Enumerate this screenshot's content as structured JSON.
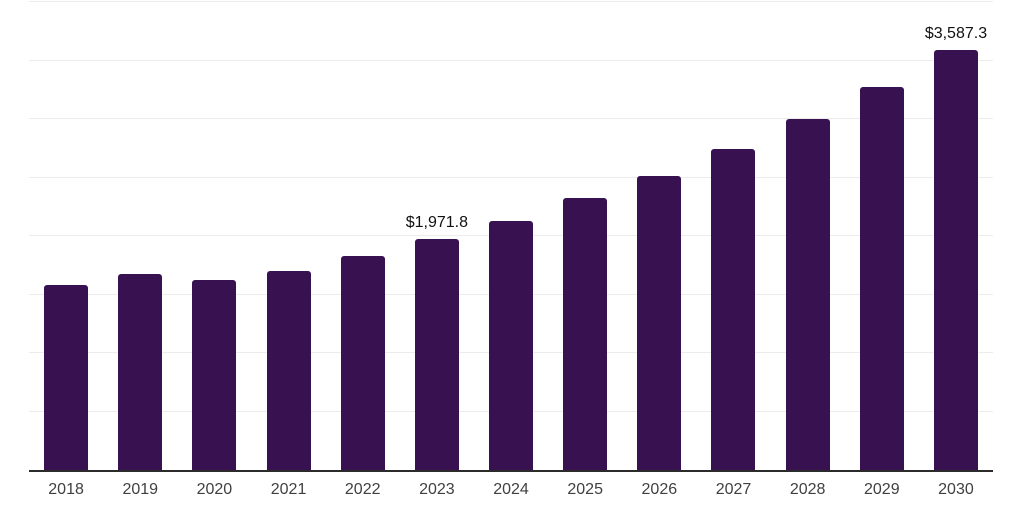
{
  "chart_data": {
    "type": "bar",
    "title": "",
    "categories": [
      "2018",
      "2019",
      "2020",
      "2021",
      "2022",
      "2023",
      "2024",
      "2025",
      "2026",
      "2027",
      "2028",
      "2029",
      "2030"
    ],
    "values": [
      1585,
      1675,
      1625,
      1700,
      1830,
      1971.8,
      2130,
      2325,
      2515,
      2745,
      3000,
      3275,
      3587.3
    ],
    "data_labels": [
      {
        "category": "2023",
        "text": "$1,971.8"
      },
      {
        "category": "2030",
        "text": "$3,587.3"
      }
    ],
    "xlabel": "",
    "ylabel": "",
    "ylim": [
      0,
      4000
    ],
    "gridline_step": 500,
    "grid": "horizontal",
    "legend": "none",
    "y_tick_labels_visible": false,
    "colors": {
      "bar": "#371150",
      "gridline": "#ececec",
      "axis_line": "#2b2b2b",
      "value_label": "#111111",
      "tick_label": "#404040",
      "background": "#ffffff"
    }
  }
}
